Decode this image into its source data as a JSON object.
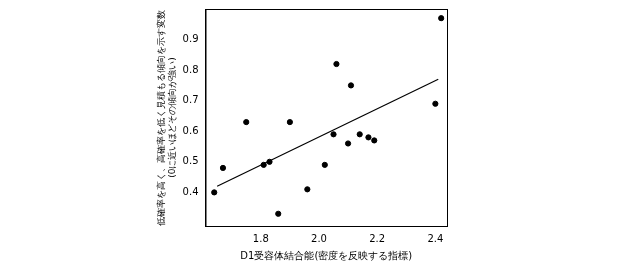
{
  "chart_data": {
    "type": "scatter",
    "x_label": "D1受容体結合能(密度を反映する指標)",
    "y_label": [
      "低確率を高く、高確率を低く見積もる傾向を示す変数",
      "(0に近いほどその傾向が強い)"
    ],
    "x": [
      1.64,
      1.67,
      1.75,
      1.81,
      1.83,
      1.86,
      1.9,
      1.96,
      2.02,
      2.05,
      2.06,
      2.1,
      2.11,
      2.14,
      2.17,
      2.19,
      2.4,
      2.42
    ],
    "values": [
      0.4,
      0.48,
      0.63,
      0.49,
      0.5,
      0.33,
      0.63,
      0.41,
      0.49,
      0.59,
      0.82,
      0.56,
      0.75,
      0.59,
      0.58,
      0.57,
      0.69,
      0.97
    ],
    "color": "#000000",
    "marker": "circle",
    "trend_line": {
      "x": [
        1.65,
        2.41
      ],
      "y": [
        0.42,
        0.77
      ]
    },
    "xlim": [
      1.61,
      2.44
    ],
    "xticks": [
      1.8,
      {
        "value": 2,
        "label": "2.0"
      },
      2.2,
      2.4
    ],
    "ylim": [
      0.29,
      1.0
    ],
    "yticks": [
      0.4,
      0.5,
      0.6,
      0.7,
      0.8,
      0.9
    ],
    "grid": false
  }
}
